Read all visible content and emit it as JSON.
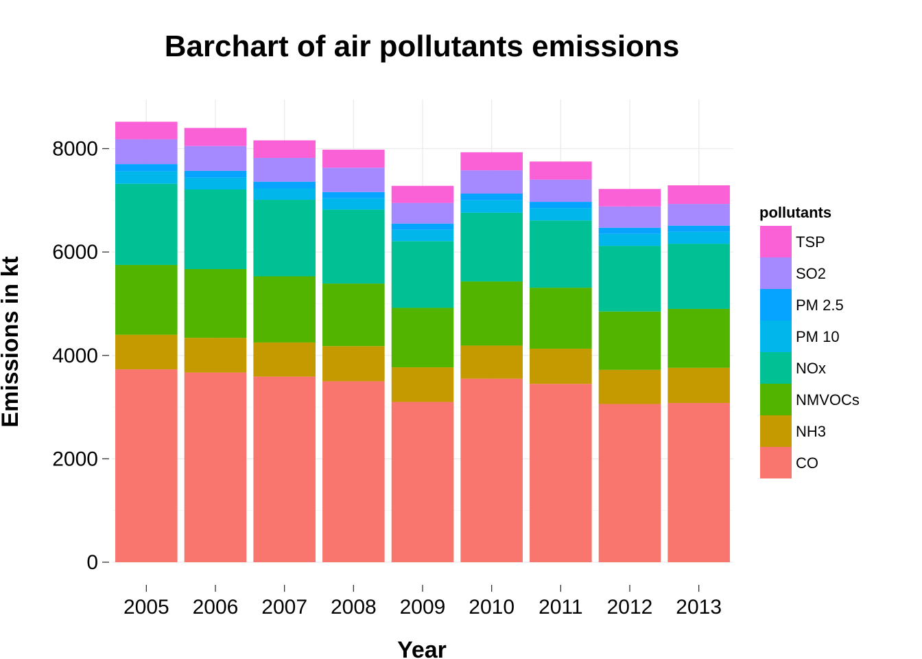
{
  "chart_data": {
    "type": "bar",
    "stacked": true,
    "title": "Barchart of air pollutants emissions",
    "xlabel": "Year",
    "ylabel": "Emissions in kt",
    "categories": [
      "2005",
      "2006",
      "2007",
      "2008",
      "2009",
      "2010",
      "2011",
      "2012",
      "2013"
    ],
    "ylim": [
      0,
      9000
    ],
    "yticks": [
      0,
      2000,
      4000,
      6000,
      8000
    ],
    "grid": true,
    "legend": {
      "title": "pollutants",
      "position": "right"
    },
    "series": [
      {
        "name": "CO",
        "color": "#F8766D",
        "values": [
          3730,
          3670,
          3590,
          3500,
          3100,
          3550,
          3450,
          3060,
          3080
        ]
      },
      {
        "name": "NH3",
        "color": "#C49A00",
        "values": [
          670,
          670,
          660,
          680,
          670,
          640,
          680,
          660,
          680
        ]
      },
      {
        "name": "NMVOCs",
        "color": "#53B400",
        "values": [
          1350,
          1330,
          1280,
          1210,
          1150,
          1240,
          1180,
          1130,
          1140
        ]
      },
      {
        "name": "NOx",
        "color": "#00C094",
        "values": [
          1570,
          1540,
          1480,
          1430,
          1290,
          1330,
          1300,
          1270,
          1260
        ]
      },
      {
        "name": "PM 10",
        "color": "#00B6EB",
        "values": [
          240,
          230,
          220,
          220,
          220,
          240,
          240,
          230,
          230
        ]
      },
      {
        "name": "PM 2.5",
        "color": "#06A4FF",
        "values": [
          140,
          130,
          130,
          120,
          120,
          130,
          120,
          120,
          120
        ]
      },
      {
        "name": "SO2",
        "color": "#A58AFF",
        "values": [
          480,
          480,
          460,
          470,
          400,
          450,
          430,
          410,
          420
        ]
      },
      {
        "name": "TSP",
        "color": "#FB61D7",
        "values": [
          340,
          350,
          340,
          350,
          330,
          350,
          350,
          340,
          360
        ]
      }
    ]
  }
}
